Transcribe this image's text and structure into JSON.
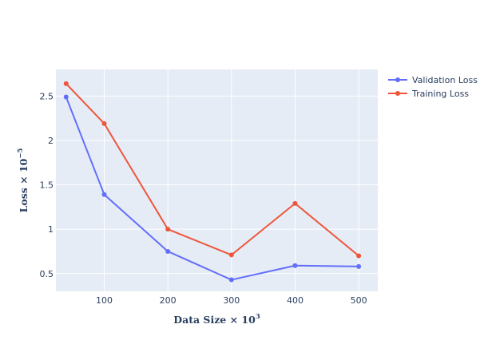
{
  "chart_data": {
    "type": "line",
    "xlabel": "Data Size × 10",
    "xlabel_exponent": "3",
    "ylabel": "Loss × 10",
    "ylabel_exponent": "−5",
    "xlim": [
      24,
      530
    ],
    "ylim": [
      0.3,
      2.8
    ],
    "x_ticks": [
      100,
      200,
      300,
      400,
      500
    ],
    "y_ticks": [
      0.5,
      1,
      1.5,
      2,
      2.5
    ],
    "x_tick_labels": [
      "100",
      "200",
      "300",
      "400",
      "500"
    ],
    "y_tick_labels": [
      "0.5",
      "1",
      "1.5",
      "2",
      "2.5"
    ],
    "grid": true,
    "legend_position": "top-right",
    "series": [
      {
        "name": "Validation Loss",
        "color": "#636efa",
        "x": [
          40,
          100,
          200,
          300,
          400,
          500
        ],
        "y": [
          2.49,
          1.39,
          0.75,
          0.43,
          0.59,
          0.58
        ]
      },
      {
        "name": "Training Loss",
        "color": "#ef553b",
        "x": [
          40,
          100,
          200,
          300,
          400,
          500
        ],
        "y": [
          2.64,
          2.19,
          1.0,
          0.71,
          1.29,
          0.7
        ]
      }
    ],
    "plot_background": "#e5ecf6",
    "grid_color": "#ffffff",
    "text_color": "#2a3f5f"
  }
}
